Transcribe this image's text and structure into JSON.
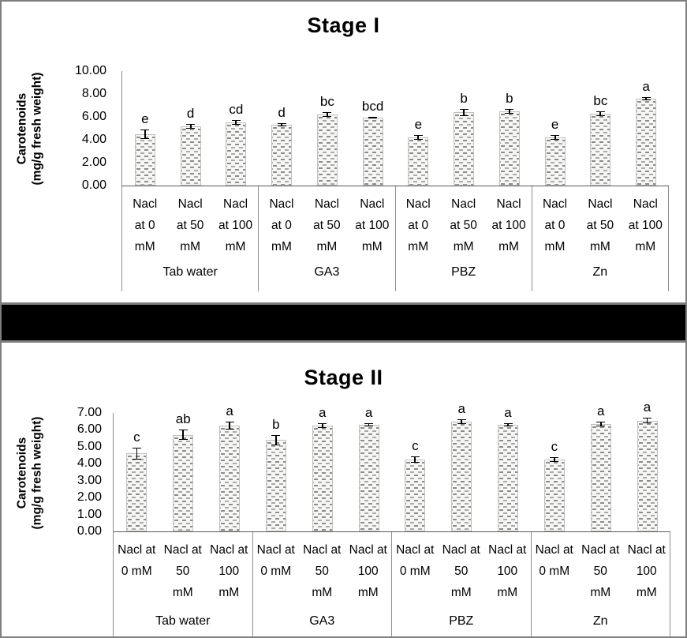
{
  "chart_data": [
    {
      "type": "bar",
      "title": "Stage I",
      "ylabel": "Carotenoids\n(mg/g fresh weight)",
      "xlabel": "",
      "ylim": [
        0,
        10
      ],
      "ytick_step": 2,
      "ytick_labels": [
        "10.00",
        "8.00",
        "6.00",
        "4.00",
        "2.00",
        "0.00"
      ],
      "grid": false,
      "legend": "none",
      "group_labels": [
        "Tab water",
        "GA3",
        "PBZ",
        "Zn"
      ],
      "bar_labels": [
        "Nacl\nat 0\nmM",
        "Nacl\nat 50\nmM",
        "Nacl\nat 100\nmM"
      ],
      "values": [
        [
          4.5,
          5.2,
          5.5
        ],
        [
          5.3,
          6.2,
          5.9
        ],
        [
          4.2,
          6.4,
          6.5
        ],
        [
          4.2,
          6.3,
          7.6
        ]
      ],
      "errors": [
        [
          0.4,
          0.2,
          0.2
        ],
        [
          0.15,
          0.2,
          0.07
        ],
        [
          0.2,
          0.3,
          0.2
        ],
        [
          0.2,
          0.2,
          0.15
        ]
      ],
      "letters": [
        [
          "e",
          "d",
          "cd"
        ],
        [
          "d",
          "bc",
          "bcd"
        ],
        [
          "e",
          "b",
          "b"
        ],
        [
          "e",
          "bc",
          "a"
        ]
      ]
    },
    {
      "type": "bar",
      "title": "Stage II",
      "ylabel": "Carotenoids\n(mg/g fresh weight)",
      "xlabel": "",
      "ylim": [
        0,
        7
      ],
      "ytick_step": 1,
      "ytick_labels": [
        "7.00",
        "6.00",
        "5.00",
        "4.00",
        "3.00",
        "2.00",
        "1.00",
        "0.00"
      ],
      "grid": false,
      "legend": "none",
      "group_labels": [
        "Tab water",
        "GA3",
        "PBZ",
        "Zn"
      ],
      "bar_labels": [
        "Nacl at\n0 mM",
        "Nacl at\n50\nmM",
        "Nacl at\n100\nmM"
      ],
      "values": [
        [
          4.6,
          5.7,
          6.25
        ],
        [
          5.4,
          6.25,
          6.3
        ],
        [
          4.25,
          6.5,
          6.3
        ],
        [
          4.25,
          6.35,
          6.55
        ]
      ],
      "errors": [
        [
          0.35,
          0.3,
          0.25
        ],
        [
          0.3,
          0.15,
          0.1
        ],
        [
          0.2,
          0.15,
          0.1
        ],
        [
          0.15,
          0.15,
          0.15
        ]
      ],
      "letters": [
        [
          "c",
          "ab",
          "a"
        ],
        [
          "b",
          "a",
          "a"
        ],
        [
          "c",
          "a",
          "a"
        ],
        [
          "c",
          "a",
          "a"
        ]
      ]
    }
  ]
}
